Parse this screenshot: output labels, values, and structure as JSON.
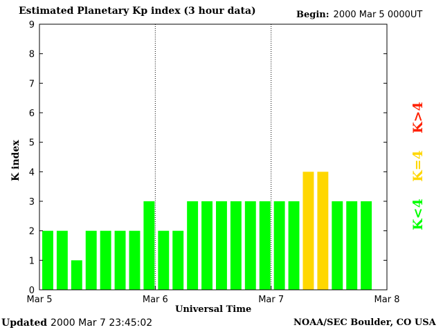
{
  "header": {
    "title": "Estimated Planetary Kp index (3 hour data)",
    "begin_label": "Begin:",
    "begin_value": "2000 Mar 5 0000UT"
  },
  "footer": {
    "updated_label": "Updated",
    "updated_value": "2000 Mar  7 23:45:02",
    "credit": "NOAA/SEC Boulder, CO USA"
  },
  "legend": [
    {
      "text": "K<4",
      "color": "#00ff00"
    },
    {
      "text": "K=4",
      "color": "#ffd700"
    },
    {
      "text": "K>4",
      "color": "#ff2000"
    }
  ],
  "chart_data": {
    "type": "bar",
    "title": "Estimated Planetary Kp index (3 hour data)",
    "xlabel": "Universal Time",
    "ylabel": "K index",
    "ylim": [
      0,
      9
    ],
    "yticks": [
      "0",
      "1",
      "2",
      "3",
      "4",
      "5",
      "6",
      "7",
      "8",
      "9"
    ],
    "xticks": [
      "Mar 5",
      "Mar 6",
      "Mar 7",
      "Mar 8"
    ],
    "interval_hours": 3,
    "values": [
      2,
      2,
      1,
      2,
      2,
      2,
      2,
      3,
      2,
      2,
      3,
      3,
      3,
      3,
      3,
      3,
      3,
      3,
      4,
      4,
      3,
      3,
      3
    ],
    "colors": {
      "below4": "#00ff00",
      "equal4": "#ffd700",
      "above4": "#ff2000"
    },
    "grid": false
  }
}
